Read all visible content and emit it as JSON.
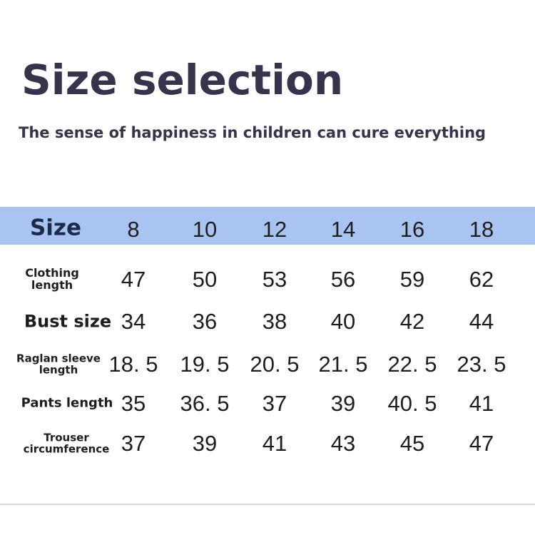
{
  "header": {
    "title": "Size selection",
    "subtitle": "The sense of happiness in children can cure everything"
  },
  "table": {
    "columns": [
      "Size",
      "8",
      "10",
      "12",
      "14",
      "16",
      "18"
    ],
    "rows": [
      [
        "Clothing length",
        "47",
        "50",
        "53",
        "56",
        "59",
        "62"
      ],
      [
        "Bust size",
        "34",
        "36",
        "38",
        "40",
        "42",
        "44"
      ],
      [
        "Raglan sleeve length",
        "18. 5",
        "19. 5",
        "20. 5",
        "21. 5",
        "22. 5",
        "23. 5"
      ],
      [
        "Pants length",
        "35",
        "36. 5",
        "37",
        "39",
        "40. 5",
        "41"
      ],
      [
        "Trouser circumference",
        "37",
        "39",
        "41",
        "43",
        "45",
        "47"
      ]
    ]
  }
}
